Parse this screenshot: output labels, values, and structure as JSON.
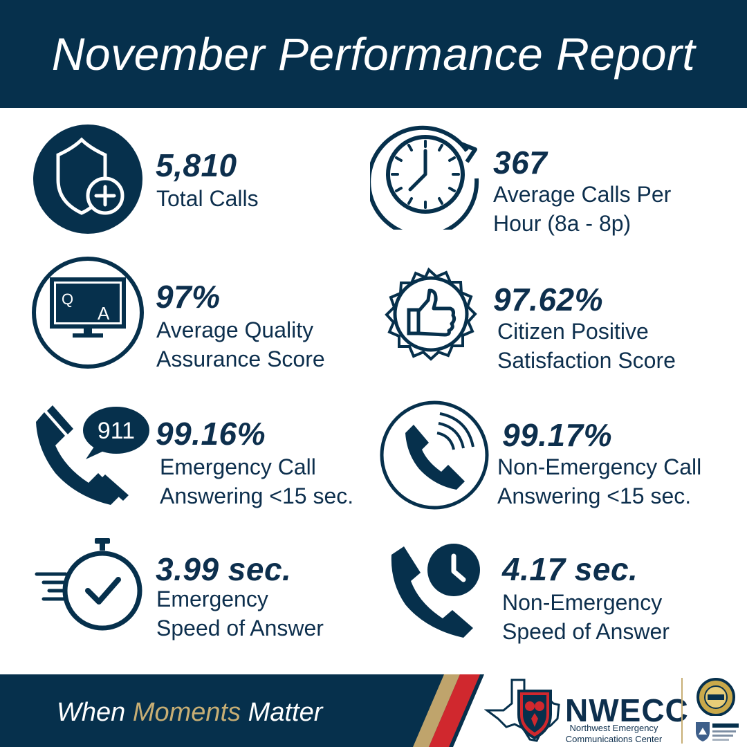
{
  "header": {
    "title": "November Performance Report"
  },
  "stats": [
    {
      "value": "5,810",
      "label_lines": [
        "Total Calls"
      ],
      "icon": "shield-plus-icon"
    },
    {
      "value": "367",
      "label_lines": [
        "Average Calls Per",
        "Hour (8a - 8p)"
      ],
      "icon": "clock-refresh-icon"
    },
    {
      "value": "97%",
      "label_lines": [
        "Average Quality",
        "Assurance Score"
      ],
      "icon": "qa-monitor-icon",
      "icon_text": [
        "Q",
        "A"
      ]
    },
    {
      "value": "97.62%",
      "label_lines": [
        "Citizen Positive",
        "Satisfaction Score"
      ],
      "icon": "thumbs-up-badge-icon"
    },
    {
      "value": "99.16%",
      "label_lines": [
        "Emergency Call",
        "Answering <15 sec."
      ],
      "icon": "phone-911-icon",
      "icon_text": "911"
    },
    {
      "value": "99.17%",
      "label_lines": [
        "Non-Emergency Call",
        "Answering <15 sec."
      ],
      "icon": "phone-ringing-icon"
    },
    {
      "value": "3.99 sec.",
      "label_lines": [
        "Emergency",
        "Speed of Answer"
      ],
      "icon": "stopwatch-check-icon"
    },
    {
      "value": "4.17 sec.",
      "label_lines": [
        "Non-Emergency",
        "Speed of Answer"
      ],
      "icon": "phone-clock-icon"
    }
  ],
  "footer": {
    "tagline_start": "When ",
    "tagline_accent": "Moments",
    "tagline_end": " Matter",
    "logo_title": "NWECC",
    "logo_subtitle_lines": [
      "Northwest Emergency",
      "Communications Center"
    ]
  },
  "colors": {
    "navy": "#06304c",
    "text_navy": "#0d2f4d",
    "gold": "#c7ae74",
    "red": "#d0282e",
    "white": "#ffffff"
  }
}
